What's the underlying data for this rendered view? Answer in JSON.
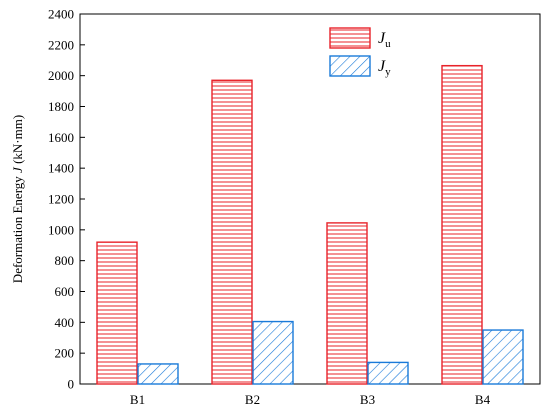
{
  "chart_data": {
    "type": "bar",
    "categories": [
      "B1",
      "B2",
      "B3",
      "B4"
    ],
    "series": [
      {
        "name": "Ju",
        "name_main": "J",
        "name_sub": "u",
        "values": [
          920,
          1970,
          1045,
          2065
        ],
        "color": "#e8232a",
        "pattern": "horizontal-lines"
      },
      {
        "name": "Jy",
        "name_main": "J",
        "name_sub": "y",
        "values": [
          130,
          405,
          140,
          350
        ],
        "color": "#1a7ad9",
        "pattern": "diagonal-hatch"
      }
    ],
    "ylabel_main": "Deformation Energy ",
    "ylabel_italic": "J",
    "ylabel_unit": " (kN·mm)",
    "ylim": [
      0,
      2400
    ],
    "yticks": [
      0,
      200,
      400,
      600,
      800,
      1000,
      1200,
      1400,
      1600,
      1800,
      2000,
      2200,
      2400
    ],
    "grid": false,
    "legend_position": "top-center"
  }
}
